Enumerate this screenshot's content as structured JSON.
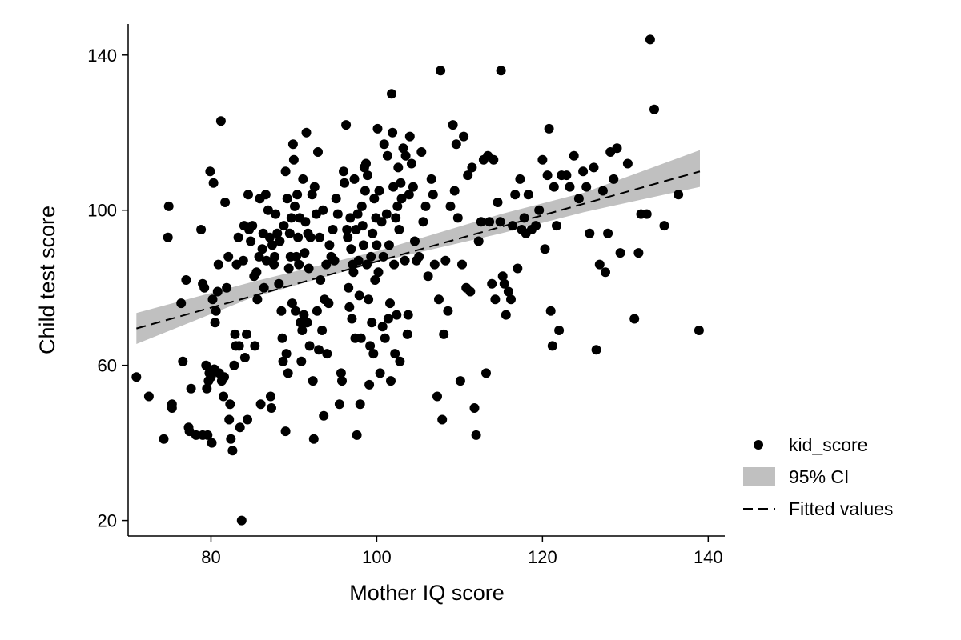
{
  "chart_data": {
    "type": "scatter",
    "title": "",
    "xlabel": "Mother IQ score",
    "ylabel": "Child test score",
    "xlim": [
      70,
      142
    ],
    "ylim": [
      16,
      148
    ],
    "x_ticks": [
      "80",
      "100",
      "120",
      "140"
    ],
    "y_ticks": [
      "20",
      "60",
      "100",
      "140"
    ],
    "grid": false,
    "legend_position": "right",
    "legend": {
      "points_label": "kid_score",
      "ci_label": "95% CI",
      "fit_label": "Fitted values"
    },
    "colors": {
      "points": "#000000",
      "ci_band": "#c0c0c0",
      "fit_line": "#000000"
    },
    "fit": {
      "x": [
        71,
        139
      ],
      "y": [
        69.5,
        110.0
      ]
    },
    "ci": {
      "x": [
        71,
        85,
        100,
        115,
        125,
        139
      ],
      "lower": [
        65.5,
        77.5,
        86.6,
        94.0,
        99.5,
        106.0
      ],
      "upper": [
        73.5,
        81.5,
        89.4,
        99.0,
        104.5,
        115.5
      ]
    },
    "points": [
      [
        71.0,
        57
      ],
      [
        72.5,
        52
      ],
      [
        74.3,
        41
      ],
      [
        74.8,
        93
      ],
      [
        74.9,
        101
      ],
      [
        75.3,
        50
      ],
      [
        75.3,
        49
      ],
      [
        76.4,
        76
      ],
      [
        76.6,
        61
      ],
      [
        77.0,
        82
      ],
      [
        77.3,
        44
      ],
      [
        77.4,
        43
      ],
      [
        77.6,
        54
      ],
      [
        78.2,
        42
      ],
      [
        78.8,
        95
      ],
      [
        79.0,
        81
      ],
      [
        79.0,
        42
      ],
      [
        79.2,
        80
      ],
      [
        79.4,
        60
      ],
      [
        79.5,
        54
      ],
      [
        79.6,
        42
      ],
      [
        79.7,
        56
      ],
      [
        79.8,
        58
      ],
      [
        79.9,
        110
      ],
      [
        80.0,
        57
      ],
      [
        80.1,
        40
      ],
      [
        80.2,
        77
      ],
      [
        80.3,
        107
      ],
      [
        80.4,
        59
      ],
      [
        80.5,
        71
      ],
      [
        80.6,
        74
      ],
      [
        80.8,
        79
      ],
      [
        80.9,
        86
      ],
      [
        81.0,
        58
      ],
      [
        81.2,
        123
      ],
      [
        81.3,
        56
      ],
      [
        81.5,
        52
      ],
      [
        81.6,
        57
      ],
      [
        81.7,
        102
      ],
      [
        81.9,
        80
      ],
      [
        82.1,
        88
      ],
      [
        82.2,
        46
      ],
      [
        82.3,
        50
      ],
      [
        82.4,
        41
      ],
      [
        82.6,
        38
      ],
      [
        82.8,
        60
      ],
      [
        82.9,
        68
      ],
      [
        83.0,
        65
      ],
      [
        83.1,
        86
      ],
      [
        83.3,
        93
      ],
      [
        83.4,
        65
      ],
      [
        83.5,
        44
      ],
      [
        83.7,
        20
      ],
      [
        83.9,
        87
      ],
      [
        84.0,
        96
      ],
      [
        84.1,
        62
      ],
      [
        84.3,
        68
      ],
      [
        84.4,
        46
      ],
      [
        84.5,
        104
      ],
      [
        84.6,
        95
      ],
      [
        84.8,
        92
      ],
      [
        85.0,
        96
      ],
      [
        85.2,
        83
      ],
      [
        85.3,
        65
      ],
      [
        85.5,
        84
      ],
      [
        85.6,
        77
      ],
      [
        85.8,
        88
      ],
      [
        85.9,
        103
      ],
      [
        86.0,
        50
      ],
      [
        86.2,
        90
      ],
      [
        86.3,
        94
      ],
      [
        86.4,
        80
      ],
      [
        86.6,
        104
      ],
      [
        86.7,
        87
      ],
      [
        86.9,
        100
      ],
      [
        87.1,
        93
      ],
      [
        87.2,
        52
      ],
      [
        87.3,
        49
      ],
      [
        87.4,
        91
      ],
      [
        87.6,
        86
      ],
      [
        87.7,
        88
      ],
      [
        87.8,
        99
      ],
      [
        88.0,
        94
      ],
      [
        88.2,
        81
      ],
      [
        88.3,
        92
      ],
      [
        88.5,
        74
      ],
      [
        88.6,
        67
      ],
      [
        88.7,
        61
      ],
      [
        88.8,
        96
      ],
      [
        89.0,
        43
      ],
      [
        89.0,
        110
      ],
      [
        89.1,
        63
      ],
      [
        89.2,
        103
      ],
      [
        89.3,
        58
      ],
      [
        89.4,
        85
      ],
      [
        89.5,
        94
      ],
      [
        89.6,
        88
      ],
      [
        89.7,
        98
      ],
      [
        89.8,
        76
      ],
      [
        89.9,
        117
      ],
      [
        90.0,
        113
      ],
      [
        90.1,
        101
      ],
      [
        90.2,
        74
      ],
      [
        90.3,
        88
      ],
      [
        90.4,
        104
      ],
      [
        90.5,
        93
      ],
      [
        90.6,
        86
      ],
      [
        90.7,
        98
      ],
      [
        90.8,
        71
      ],
      [
        90.9,
        61
      ],
      [
        91.0,
        69
      ],
      [
        91.1,
        108
      ],
      [
        91.2,
        73
      ],
      [
        91.3,
        89
      ],
      [
        91.4,
        97
      ],
      [
        91.5,
        120
      ],
      [
        91.6,
        71
      ],
      [
        91.7,
        94
      ],
      [
        91.8,
        85
      ],
      [
        91.9,
        65
      ],
      [
        92.0,
        93
      ],
      [
        92.2,
        104
      ],
      [
        92.3,
        56
      ],
      [
        92.4,
        41
      ],
      [
        92.5,
        106
      ],
      [
        92.7,
        99
      ],
      [
        92.8,
        74
      ],
      [
        92.9,
        115
      ],
      [
        93.0,
        64
      ],
      [
        93.1,
        93
      ],
      [
        93.2,
        82
      ],
      [
        93.4,
        69
      ],
      [
        93.5,
        100
      ],
      [
        93.6,
        47
      ],
      [
        93.7,
        77
      ],
      [
        93.9,
        86
      ],
      [
        94.0,
        63
      ],
      [
        94.2,
        76
      ],
      [
        94.3,
        91
      ],
      [
        94.5,
        88
      ],
      [
        94.7,
        95
      ],
      [
        94.9,
        87
      ],
      [
        95.1,
        103
      ],
      [
        95.3,
        99
      ],
      [
        95.5,
        50
      ],
      [
        95.7,
        58
      ],
      [
        95.8,
        56
      ],
      [
        96.0,
        110
      ],
      [
        96.1,
        107
      ],
      [
        96.3,
        122
      ],
      [
        96.4,
        95
      ],
      [
        96.5,
        93
      ],
      [
        96.6,
        80
      ],
      [
        96.7,
        75
      ],
      [
        96.8,
        98
      ],
      [
        96.9,
        90
      ],
      [
        97.0,
        72
      ],
      [
        97.1,
        86
      ],
      [
        97.2,
        84
      ],
      [
        97.3,
        108
      ],
      [
        97.4,
        67
      ],
      [
        97.5,
        95
      ],
      [
        97.6,
        42
      ],
      [
        97.7,
        99
      ],
      [
        97.8,
        87
      ],
      [
        97.9,
        78
      ],
      [
        98.0,
        50
      ],
      [
        98.1,
        67
      ],
      [
        98.2,
        101
      ],
      [
        98.3,
        96
      ],
      [
        98.4,
        91
      ],
      [
        98.5,
        111
      ],
      [
        98.6,
        105
      ],
      [
        98.7,
        112
      ],
      [
        98.8,
        86
      ],
      [
        98.9,
        109
      ],
      [
        99.0,
        77
      ],
      [
        99.1,
        55
      ],
      [
        99.2,
        65
      ],
      [
        99.3,
        88
      ],
      [
        99.4,
        71
      ],
      [
        99.5,
        94
      ],
      [
        99.6,
        63
      ],
      [
        99.7,
        103
      ],
      [
        99.8,
        82
      ],
      [
        99.9,
        98
      ],
      [
        100.0,
        91
      ],
      [
        100.1,
        121
      ],
      [
        100.2,
        84
      ],
      [
        100.3,
        105
      ],
      [
        100.4,
        58
      ],
      [
        100.6,
        97
      ],
      [
        100.7,
        70
      ],
      [
        100.8,
        88
      ],
      [
        100.9,
        117
      ],
      [
        101.0,
        67
      ],
      [
        101.2,
        99
      ],
      [
        101.3,
        114
      ],
      [
        101.4,
        72
      ],
      [
        101.5,
        91
      ],
      [
        101.6,
        76
      ],
      [
        101.7,
        56
      ],
      [
        101.8,
        130
      ],
      [
        101.9,
        120
      ],
      [
        102.0,
        106
      ],
      [
        102.1,
        86
      ],
      [
        102.2,
        63
      ],
      [
        102.3,
        98
      ],
      [
        102.4,
        73
      ],
      [
        102.5,
        101
      ],
      [
        102.6,
        111
      ],
      [
        102.7,
        95
      ],
      [
        102.8,
        61
      ],
      [
        102.9,
        107
      ],
      [
        103.0,
        103
      ],
      [
        103.2,
        116
      ],
      [
        103.4,
        87
      ],
      [
        103.5,
        114
      ],
      [
        103.7,
        68
      ],
      [
        103.8,
        73
      ],
      [
        103.9,
        104
      ],
      [
        104.0,
        119
      ],
      [
        104.2,
        112
      ],
      [
        104.4,
        106
      ],
      [
        104.6,
        92
      ],
      [
        104.8,
        87
      ],
      [
        105.1,
        88
      ],
      [
        105.4,
        115
      ],
      [
        105.6,
        97
      ],
      [
        105.9,
        101
      ],
      [
        106.2,
        83
      ],
      [
        106.6,
        108
      ],
      [
        106.8,
        104
      ],
      [
        107.0,
        86
      ],
      [
        107.3,
        52
      ],
      [
        107.5,
        77
      ],
      [
        107.7,
        136
      ],
      [
        107.9,
        46
      ],
      [
        108.1,
        68
      ],
      [
        108.3,
        87
      ],
      [
        108.6,
        74
      ],
      [
        108.9,
        101
      ],
      [
        109.2,
        122
      ],
      [
        109.4,
        105
      ],
      [
        109.6,
        117
      ],
      [
        109.8,
        98
      ],
      [
        110.1,
        56
      ],
      [
        110.3,
        86
      ],
      [
        110.5,
        119
      ],
      [
        110.8,
        80
      ],
      [
        111.0,
        109
      ],
      [
        111.3,
        79
      ],
      [
        111.5,
        111
      ],
      [
        111.8,
        49
      ],
      [
        112.0,
        42
      ],
      [
        112.3,
        92
      ],
      [
        112.6,
        97
      ],
      [
        112.9,
        113
      ],
      [
        113.2,
        58
      ],
      [
        113.4,
        114
      ],
      [
        113.6,
        97
      ],
      [
        113.9,
        81
      ],
      [
        114.1,
        113
      ],
      [
        114.3,
        77
      ],
      [
        114.6,
        102
      ],
      [
        114.9,
        97
      ],
      [
        115.0,
        136
      ],
      [
        115.2,
        83
      ],
      [
        115.4,
        81
      ],
      [
        115.6,
        73
      ],
      [
        115.9,
        79
      ],
      [
        116.2,
        77
      ],
      [
        116.4,
        96
      ],
      [
        116.7,
        104
      ],
      [
        117.0,
        85
      ],
      [
        117.3,
        108
      ],
      [
        117.5,
        95
      ],
      [
        117.8,
        98
      ],
      [
        118.0,
        94
      ],
      [
        118.3,
        104
      ],
      [
        118.7,
        95
      ],
      [
        119.2,
        96
      ],
      [
        119.6,
        100
      ],
      [
        120.0,
        113
      ],
      [
        120.3,
        90
      ],
      [
        120.6,
        109
      ],
      [
        120.8,
        121
      ],
      [
        121.0,
        74
      ],
      [
        121.2,
        65
      ],
      [
        121.4,
        106
      ],
      [
        121.7,
        96
      ],
      [
        122.0,
        69
      ],
      [
        122.3,
        109
      ],
      [
        122.9,
        109
      ],
      [
        123.3,
        106
      ],
      [
        123.8,
        114
      ],
      [
        124.4,
        103
      ],
      [
        124.9,
        110
      ],
      [
        125.3,
        106
      ],
      [
        125.7,
        94
      ],
      [
        126.2,
        111
      ],
      [
        126.5,
        64
      ],
      [
        126.9,
        86
      ],
      [
        127.3,
        105
      ],
      [
        127.6,
        84
      ],
      [
        127.9,
        94
      ],
      [
        128.2,
        115
      ],
      [
        128.6,
        108
      ],
      [
        129.0,
        116
      ],
      [
        129.4,
        89
      ],
      [
        130.3,
        112
      ],
      [
        131.1,
        72
      ],
      [
        131.6,
        89
      ],
      [
        131.9,
        99
      ],
      [
        132.6,
        99
      ],
      [
        133.0,
        144
      ],
      [
        133.5,
        126
      ],
      [
        134.7,
        96
      ],
      [
        136.4,
        104
      ],
      [
        138.9,
        69
      ]
    ]
  }
}
